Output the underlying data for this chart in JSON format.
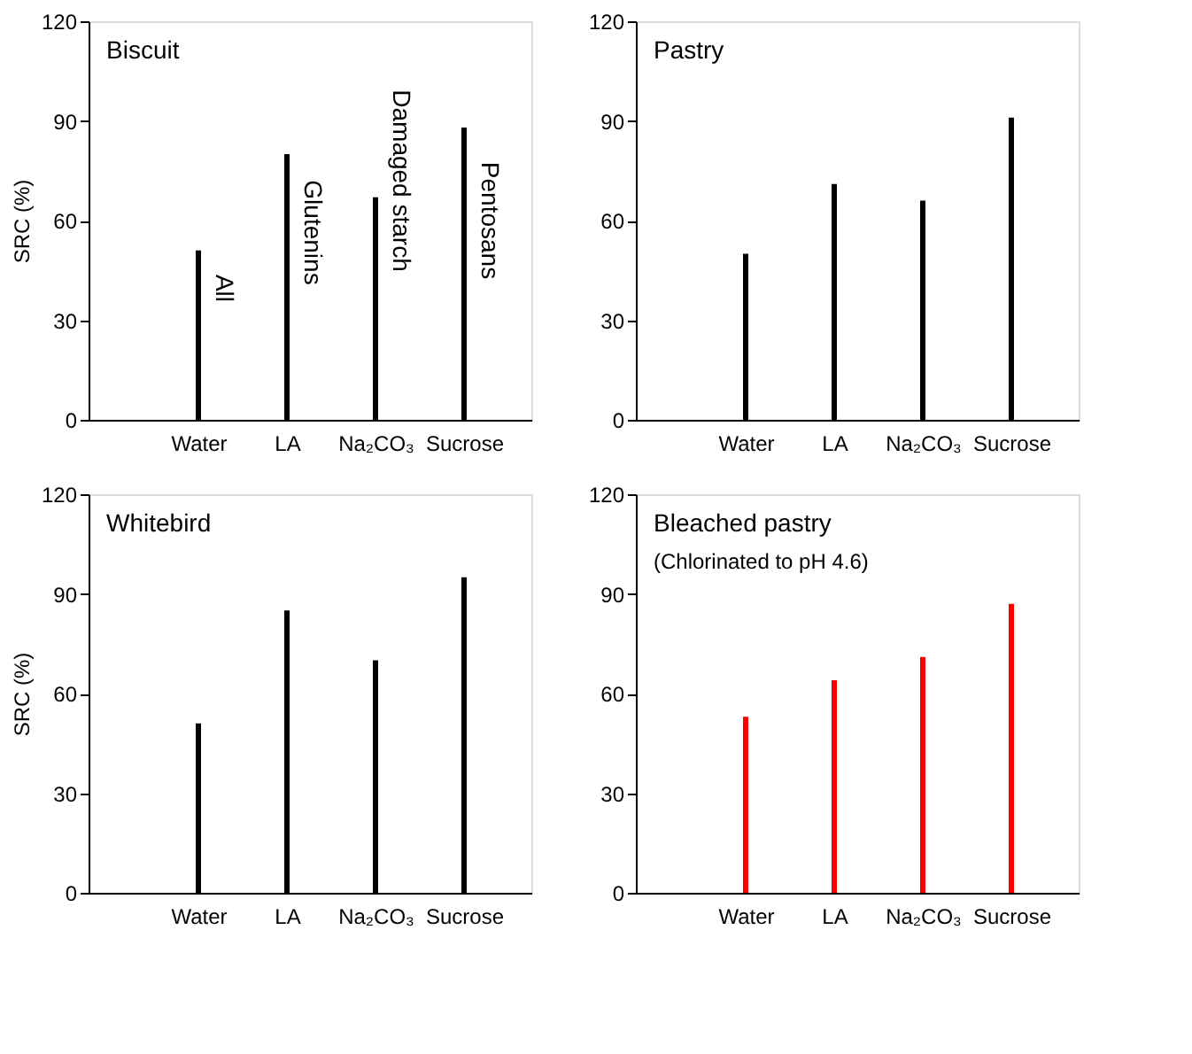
{
  "chart_data": [
    {
      "type": "bar",
      "title": "Biscuit",
      "ylabel": "SRC (%)",
      "categories": [
        "Water",
        "LA",
        "Na₂CO₃",
        "Sucrose"
      ],
      "values": [
        51,
        80,
        67,
        88
      ],
      "color": "#000000",
      "ylim": [
        0,
        120
      ],
      "yticks": [
        0,
        30,
        60,
        90,
        120
      ],
      "grid": false,
      "annotations": [
        "All",
        "Glutenins",
        "Damaged starch",
        "Pentosans"
      ]
    },
    {
      "type": "bar",
      "title": "Pastry",
      "categories": [
        "Water",
        "LA",
        "Na₂CO₃",
        "Sucrose"
      ],
      "values": [
        50,
        71,
        66,
        91
      ],
      "color": "#000000",
      "ylim": [
        0,
        120
      ],
      "yticks": [
        0,
        30,
        60,
        90,
        120
      ],
      "grid": false
    },
    {
      "type": "bar",
      "title": "Whitebird",
      "ylabel": "SRC (%)",
      "categories": [
        "Water",
        "LA",
        "Na₂CO₃",
        "Sucrose"
      ],
      "values": [
        51,
        85,
        70,
        95
      ],
      "color": "#000000",
      "ylim": [
        0,
        120
      ],
      "yticks": [
        0,
        30,
        60,
        90,
        120
      ],
      "grid": false
    },
    {
      "type": "bar",
      "title": "Bleached pastry",
      "subtitle": "(Chlorinated to pH 4.6)",
      "categories": [
        "Water",
        "LA",
        "Na₂CO₃",
        "Sucrose"
      ],
      "values": [
        53,
        64,
        71,
        87
      ],
      "color": "#ff0000",
      "ylim": [
        0,
        120
      ],
      "yticks": [
        0,
        30,
        60,
        90,
        120
      ],
      "grid": false
    }
  ]
}
